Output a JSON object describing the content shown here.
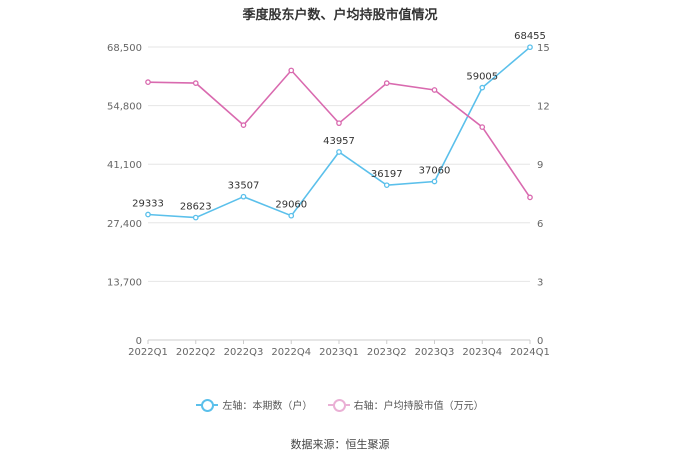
{
  "chart_data": {
    "type": "line",
    "title": "季度股东户数、户均持股市值情况",
    "categories": [
      "2022Q1",
      "2022Q2",
      "2022Q3",
      "2022Q4",
      "2023Q1",
      "2023Q2",
      "2023Q3",
      "2023Q4",
      "2024Q1"
    ],
    "series": [
      {
        "name": "左轴：本期数（户）",
        "axis": "left",
        "color": "#5bc0eb",
        "values": [
          29333,
          28623,
          33507,
          29060,
          43957,
          36197,
          37060,
          59005,
          68455
        ],
        "labels": [
          "29333",
          "28623",
          "33507",
          "29060",
          "43957",
          "36197",
          "37060",
          "59005",
          "68455"
        ]
      },
      {
        "name": "右轴：户均持股市值（万元）",
        "axis": "right",
        "color": "#d96aaf",
        "values": [
          13.2,
          13.15,
          11.0,
          13.8,
          11.1,
          13.15,
          12.8,
          10.9,
          7.3
        ]
      }
    ],
    "left_axis": {
      "ylim": [
        0,
        68500
      ],
      "ticks": [
        "0",
        "13,700",
        "27,400",
        "41,100",
        "54,800",
        "68,500"
      ]
    },
    "right_axis": {
      "ylim": [
        0,
        15
      ],
      "ticks": [
        "0",
        "3",
        "6",
        "9",
        "12",
        "15"
      ]
    },
    "grid": true,
    "legend_position": "bottom"
  },
  "source": "数据来源：恒生聚源"
}
